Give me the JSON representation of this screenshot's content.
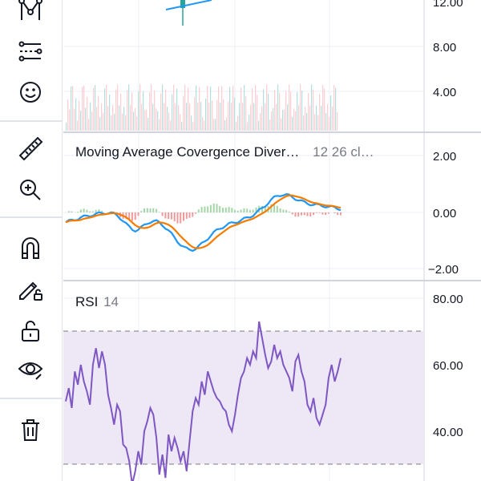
{
  "toolbar": {
    "tools": [
      {
        "name": "pattern-icon"
      },
      {
        "name": "fib-tool-icon"
      },
      {
        "name": "smiley-icon"
      },
      {
        "name": "ruler-icon"
      },
      {
        "name": "zoom-in-icon"
      },
      {
        "name": "magnet-icon"
      },
      {
        "name": "pencil-lock-icon"
      },
      {
        "name": "unlock-icon"
      },
      {
        "name": "eye-icon"
      },
      {
        "name": "trash-icon"
      }
    ]
  },
  "price_axis": {
    "labels": [
      "12.00",
      "8.00",
      "4.00"
    ]
  },
  "macd": {
    "title": "Moving Average Covergence Diver…",
    "params": "12 26 cl…",
    "axis_labels": [
      "2.00",
      "0.00",
      "−2.00"
    ],
    "colors": {
      "macd": "#2196f3",
      "signal": "#f57c00",
      "hist_up": "#a5d6a7",
      "hist_down": "#ef9a9a"
    }
  },
  "rsi": {
    "title": "RSI",
    "params": "14",
    "axis_labels": [
      "80.00",
      "60.00",
      "40.00"
    ],
    "colors": {
      "line": "#7e57c2",
      "band": "#ede7f6"
    },
    "values": [
      49,
      53,
      47,
      58,
      54,
      60,
      55,
      52,
      48,
      60,
      65,
      59,
      64,
      60,
      51,
      47,
      42,
      48,
      46,
      36,
      35,
      31,
      24,
      28,
      34,
      30,
      40,
      43,
      47,
      45,
      38,
      27,
      33,
      26,
      39,
      34,
      38,
      35,
      31,
      34,
      28,
      37,
      46,
      50,
      48,
      55,
      51,
      58,
      55,
      52,
      50,
      49,
      47,
      46,
      42,
      40,
      45,
      51,
      56,
      58,
      62,
      60,
      64,
      62,
      73,
      68,
      63,
      59,
      61,
      66,
      62,
      64,
      60,
      58,
      56,
      52,
      61,
      63,
      58,
      55,
      48,
      46,
      50,
      44,
      42,
      45,
      48,
      56,
      60,
      55,
      58,
      62
    ]
  },
  "volume": {
    "colors": {
      "up": "#b2dfdb",
      "down": "#ffcdd2"
    }
  }
}
